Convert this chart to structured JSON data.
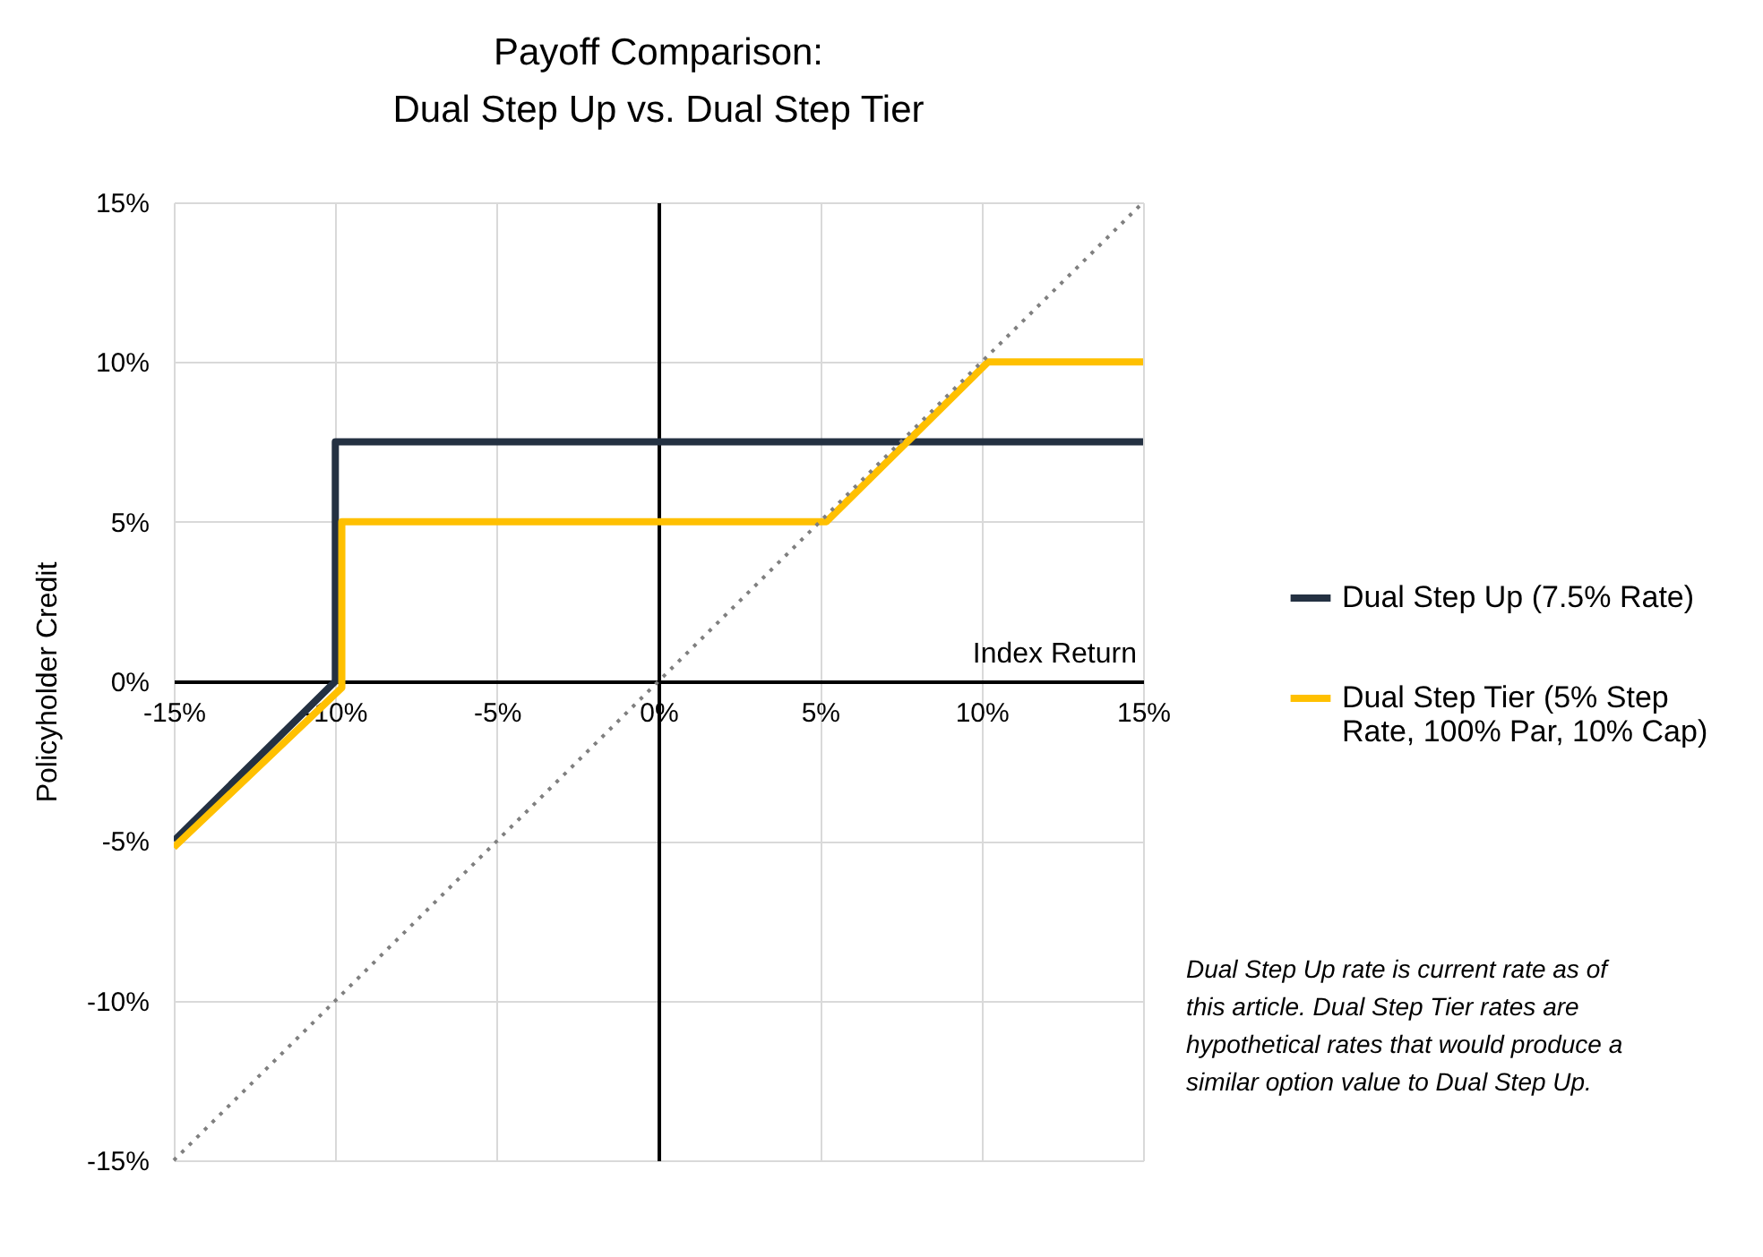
{
  "chart_data": {
    "type": "line",
    "title": "Payoff Comparison: Dual Step Up vs. Dual Step Tier",
    "xlabel": "Index Return",
    "ylabel": "Policyholder Credit",
    "xlim": [
      -15,
      15
    ],
    "ylim": [
      -15,
      15
    ],
    "xticks": [
      {
        "value": -15,
        "label": "-15%"
      },
      {
        "value": -10,
        "label": "-10%"
      },
      {
        "value": -5,
        "label": "-5%"
      },
      {
        "value": 0,
        "label": "0%"
      },
      {
        "value": 5,
        "label": "5%"
      },
      {
        "value": 10,
        "label": "10%"
      },
      {
        "value": 15,
        "label": "15%"
      }
    ],
    "yticks": [
      {
        "value": -15,
        "label": "-15%"
      },
      {
        "value": -10,
        "label": "-10%"
      },
      {
        "value": -5,
        "label": "-5%"
      },
      {
        "value": 0,
        "label": "0%"
      },
      {
        "value": 5,
        "label": "5%"
      },
      {
        "value": 10,
        "label": "10%"
      },
      {
        "value": 15,
        "label": "15%"
      }
    ],
    "grid": true,
    "legend": "right",
    "line_style": "solid",
    "series": [
      {
        "name": "Dual Step Up (7.5% Rate)",
        "color": "#243142",
        "x": [
          -15,
          -10,
          -10,
          15
        ],
        "values": [
          -5,
          0,
          7.5,
          7.5
        ]
      },
      {
        "name": "Dual Step Tier (5% Step Rate, 100% Par, 10% Cap)",
        "color": "#ffc000",
        "x": [
          -15,
          -9.8,
          -9.8,
          5.2,
          10.2,
          15
        ],
        "values": [
          -5.2,
          -0.2,
          5,
          5,
          10,
          10
        ]
      },
      {
        "color": "#7f7f7f",
        "line_style": "dotted",
        "x": [
          -15,
          15
        ],
        "values": [
          -15,
          15
        ]
      }
    ],
    "annotations": [
      "Dual Step Up rate is current rate as of this article. Dual Step Tier rates are hypothetical rates that would produce a similar option value to Dual Step Up."
    ]
  }
}
